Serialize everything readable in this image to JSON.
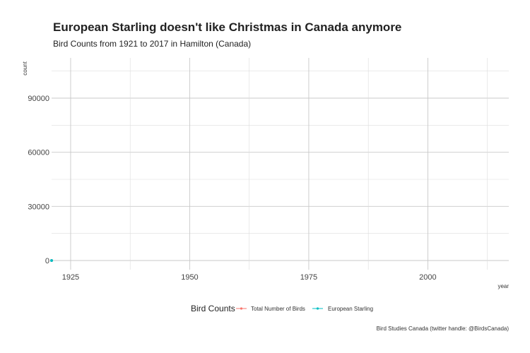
{
  "chart_data": {
    "type": "line",
    "title": "European Starling doesn't like Christmas in Canada anymore",
    "subtitle": "Bird Counts from 1921 to 2017 in Hamilton (Canada)",
    "xlabel": "year",
    "ylabel": "count",
    "xlim": [
      1921,
      2017
    ],
    "ylim": [
      0,
      110000
    ],
    "x_ticks": [
      1925,
      1950,
      1975,
      2000
    ],
    "y_ticks": [
      0,
      30000,
      60000,
      90000
    ],
    "x_tick_labels": [
      "1925",
      "1950",
      "1975",
      "2000"
    ],
    "y_tick_labels": [
      "0",
      "30000",
      "60000",
      "90000"
    ],
    "grid": true,
    "legend": {
      "title": "Bird Counts",
      "position": "bottom",
      "entries": [
        {
          "name": "Total Number of Birds",
          "color": "#F8766D"
        },
        {
          "name": "European Starling",
          "color": "#00BFC4"
        }
      ]
    },
    "series": [
      {
        "name": "Total Number of Birds",
        "color": "#F8766D",
        "x": [
          1921
        ],
        "values": [
          0
        ]
      },
      {
        "name": "European Starling",
        "color": "#00BFC4",
        "x": [
          1921
        ],
        "values": [
          0
        ]
      }
    ],
    "caption": "Bird Studies Canada (twitter handle: @BirdsCanada)"
  }
}
